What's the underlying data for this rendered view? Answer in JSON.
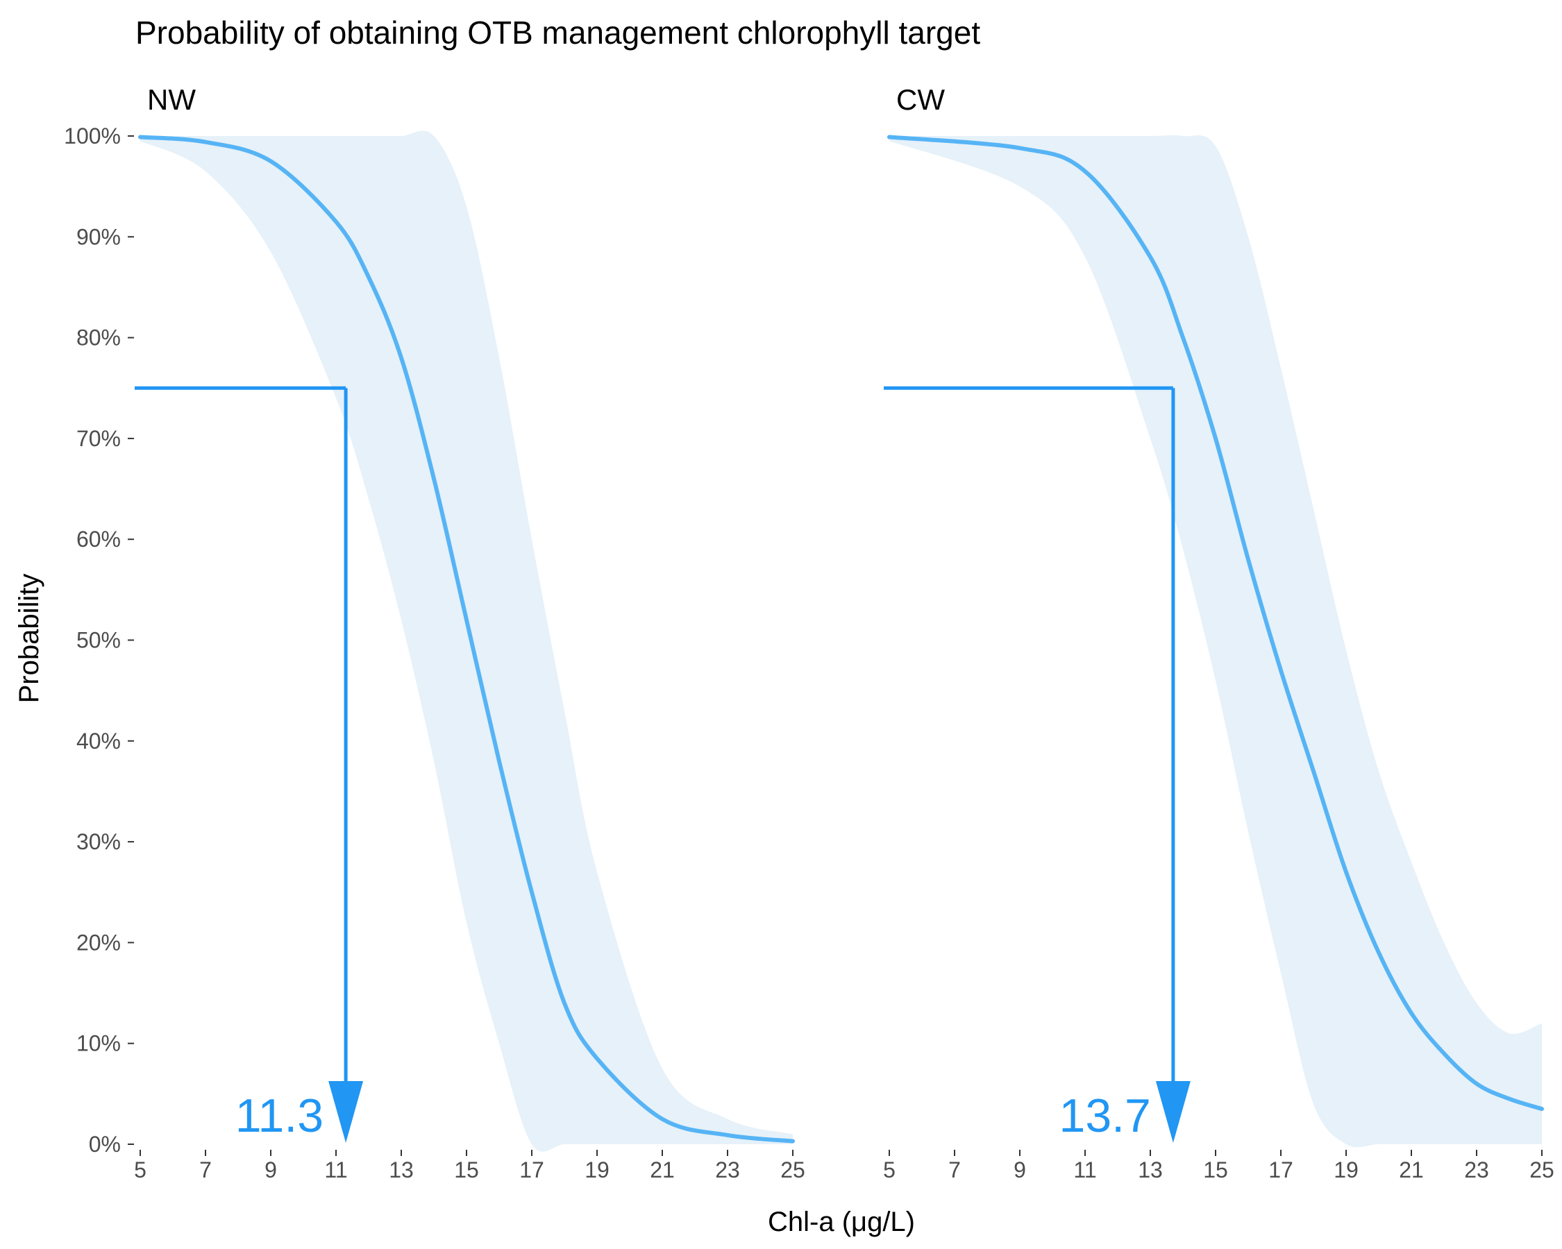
{
  "chart_data": {
    "type": "line",
    "title": "Probability of obtaining OTB management chlorophyll target",
    "xlabel": "Chl-a (μg/L)",
    "ylabel": "Probability",
    "xlim": [
      5,
      25
    ],
    "ylim": [
      0,
      1
    ],
    "x_ticks": [
      5,
      7,
      9,
      11,
      13,
      15,
      17,
      19,
      21,
      23,
      25
    ],
    "y_ticks": [
      0,
      0.1,
      0.2,
      0.3,
      0.4,
      0.5,
      0.6,
      0.7,
      0.8,
      0.9,
      1.0
    ],
    "y_tick_labels": [
      "0%",
      "10%",
      "20%",
      "30%",
      "40%",
      "50%",
      "60%",
      "70%",
      "80%",
      "90%",
      "100%"
    ],
    "target_probability": 0.75,
    "colors": {
      "line": "#56B4F5",
      "ribbon": "#E6F1F9",
      "arrow": "#2196F3",
      "label": "#2196F3"
    },
    "panels": [
      {
        "name": "NW",
        "target_value": 11.3,
        "target_label": "11.3",
        "x": [
          5,
          7,
          9,
          11,
          12,
          13,
          14,
          15,
          16,
          17,
          18,
          19,
          21,
          23,
          25
        ],
        "y": [
          0.999,
          0.994,
          0.975,
          0.915,
          0.86,
          0.78,
          0.66,
          0.52,
          0.38,
          0.25,
          0.14,
          0.085,
          0.025,
          0.009,
          0.003
        ],
        "lower": [
          0.995,
          0.965,
          0.885,
          0.74,
          0.64,
          0.52,
          0.38,
          0.22,
          0.1,
          0.0,
          0.0,
          0.0,
          0.0,
          0.0,
          0.0
        ],
        "upper": [
          1.0,
          1.0,
          1.0,
          1.0,
          1.0,
          1.0,
          1.0,
          0.93,
          0.78,
          0.6,
          0.43,
          0.27,
          0.075,
          0.025,
          0.01
        ]
      },
      {
        "name": "CW",
        "target_value": 13.7,
        "target_label": "13.7",
        "x": [
          5,
          9,
          11,
          13,
          14,
          15,
          16,
          17,
          18,
          19,
          20,
          21,
          22,
          23,
          24,
          25
        ],
        "y": [
          0.999,
          0.988,
          0.965,
          0.88,
          0.8,
          0.7,
          0.58,
          0.47,
          0.37,
          0.27,
          0.19,
          0.13,
          0.09,
          0.06,
          0.045,
          0.035
        ],
        "lower": [
          0.995,
          0.95,
          0.88,
          0.7,
          0.59,
          0.46,
          0.31,
          0.17,
          0.04,
          0.0,
          0.0,
          0.0,
          0.0,
          0.0,
          0.0,
          0.0
        ],
        "upper": [
          1.0,
          1.0,
          1.0,
          1.0,
          1.0,
          0.99,
          0.9,
          0.77,
          0.63,
          0.49,
          0.37,
          0.28,
          0.2,
          0.14,
          0.11,
          0.12
        ]
      }
    ]
  }
}
